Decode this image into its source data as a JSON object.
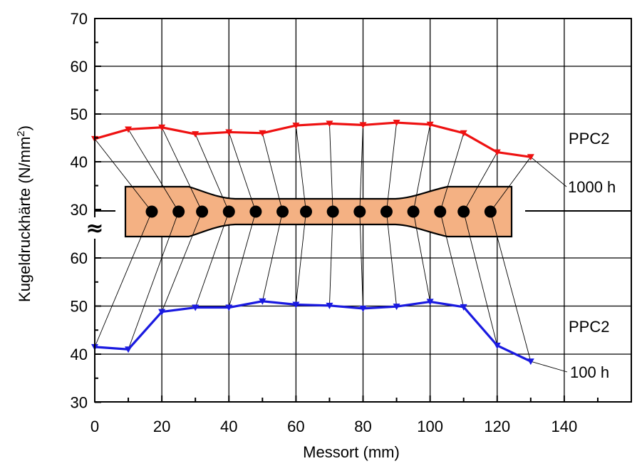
{
  "chart_data": {
    "type": "line",
    "xlabel": "Messort (mm)",
    "ylabel": "Kugeldruckhärte  (N/mm",
    "ylabel_superscript": "2",
    "ylabel_close": ")",
    "x_ticks": [
      "0",
      "20",
      "40",
      "60",
      "80",
      "100",
      "120",
      "140"
    ],
    "y_ticks_upper": [
      "30",
      "40",
      "50",
      "60",
      "70"
    ],
    "y_ticks_lower": [
      "30",
      "40",
      "50",
      "60"
    ],
    "xlim": [
      0,
      160
    ],
    "grid": true,
    "axis_break_symbol": "≈",
    "series": [
      {
        "panel": "upper",
        "label_name": "PPC2",
        "label_time": "1000 h",
        "color": "#ee1111",
        "x": [
          0,
          10,
          20,
          30,
          40,
          50,
          60,
          70,
          80,
          90,
          100,
          110,
          120,
          130
        ],
        "y": [
          44.8,
          46.8,
          47.2,
          45.8,
          46.2,
          46.0,
          47.6,
          48.0,
          47.7,
          48.2,
          47.8,
          46.0,
          42.0,
          41.0
        ]
      },
      {
        "panel": "lower",
        "label_name": "PPC2",
        "label_time": "100 h",
        "color": "#1a1ae0",
        "x": [
          0,
          10,
          20,
          30,
          40,
          50,
          60,
          70,
          80,
          90,
          100,
          110,
          120,
          130
        ],
        "y": [
          41.5,
          41.0,
          48.8,
          49.7,
          49.7,
          51.0,
          50.3,
          50.1,
          49.5,
          49.9,
          50.9,
          49.8,
          41.8,
          38.5
        ]
      }
    ],
    "specimen_points_x": [
      17,
      25,
      32,
      40,
      48,
      56,
      63,
      71,
      79,
      87,
      95,
      103,
      110,
      118
    ],
    "specimen_color": "#f4b183"
  }
}
